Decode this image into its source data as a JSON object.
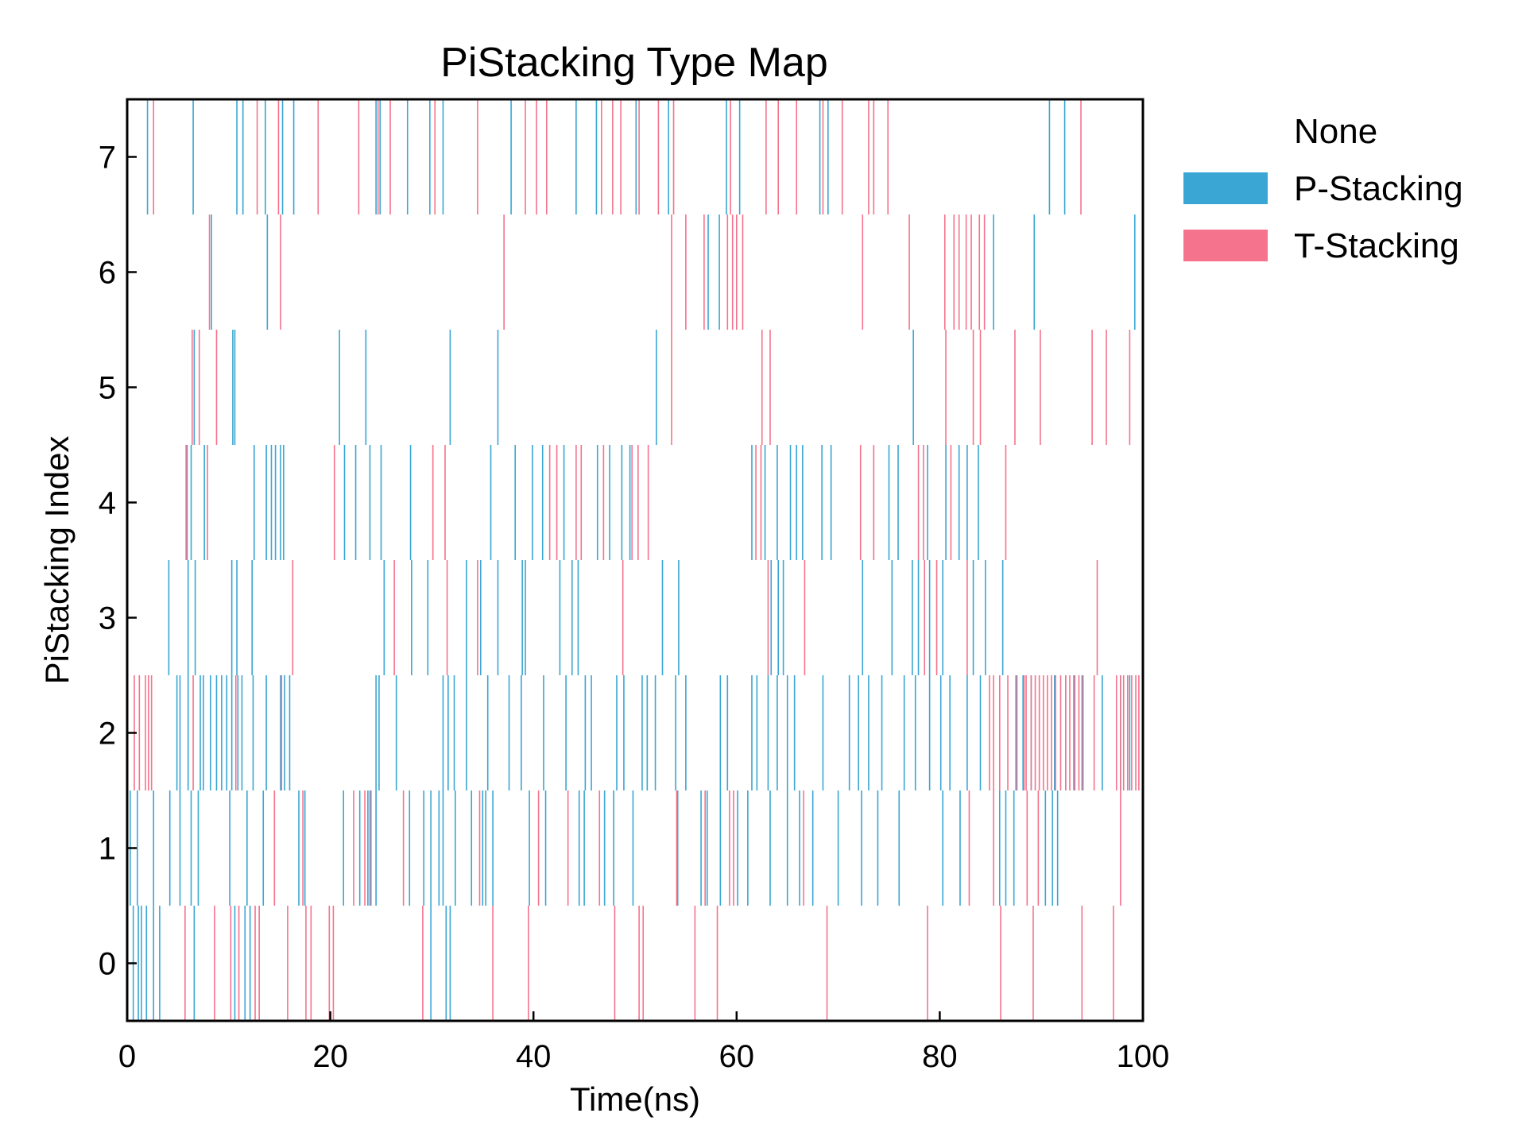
{
  "chart_data": {
    "type": "heatmap",
    "title": "PiStacking Type Map",
    "xlabel": "Time(ns)",
    "ylabel": "PiStacking Index",
    "xlim": [
      0,
      100
    ],
    "ylim": [
      -0.5,
      7.5
    ],
    "xticks": [
      0,
      20,
      40,
      60,
      80,
      100
    ],
    "yticks": [
      0,
      1,
      2,
      3,
      4,
      5,
      6,
      7
    ],
    "legend": {
      "position": "upper-right-outside",
      "entries": [
        {
          "label": "None",
          "color": "#ffffff"
        },
        {
          "label": "P-Stacking",
          "color": "#3aa6d3"
        },
        {
          "label": "T-Stacking",
          "color": "#f5738c"
        }
      ]
    },
    "colors": {
      "None": "#ffffff",
      "P-Stacking": "#3aa6d3",
      "T-Stacking": "#f5738c"
    },
    "rows": [
      {
        "index": 0,
        "P": [
          0.6,
          1.1,
          1.4,
          1.9,
          2.6,
          3.2,
          6.6,
          10.6,
          11.6,
          12.1,
          29.9,
          31.4,
          31.8
        ],
        "T": [
          5.7,
          8.6,
          10.2,
          11.0,
          12.6,
          13.0,
          15.8,
          17.6,
          18.1,
          19.9,
          20.3,
          29.1,
          36.0,
          39.5,
          48.0,
          50.4,
          50.8,
          55.9,
          58.1,
          68.9,
          78.8,
          86.0,
          89.2,
          94.0,
          97.1
        ]
      },
      {
        "index": 1,
        "P": [
          0.3,
          1.0,
          2.6,
          4.2,
          5.2,
          6.3,
          7.0,
          10.1,
          11.8,
          13.4,
          16.9,
          17.5,
          21.3,
          22.9,
          23.7,
          24.0,
          24.5,
          27.8,
          29.2,
          29.9,
          30.7,
          31.1,
          32.3,
          33.9,
          35.0,
          35.3,
          36.0,
          39.6,
          41.2,
          44.5,
          45.0,
          47.0,
          47.9,
          49.8,
          54.2,
          56.5,
          57.1,
          58.4,
          60.1,
          61.1,
          63.3,
          65.0,
          66.2,
          67.5,
          70.0,
          72.3,
          73.9,
          76.0,
          80.3,
          82.0,
          85.9,
          86.5,
          87.3,
          90.4,
          91.1,
          91.6
        ],
        "T": [
          14.5,
          17.3,
          22.3,
          23.4,
          23.9,
          27.2,
          34.7,
          40.5,
          43.4,
          46.5,
          54.1,
          56.9,
          59.3,
          59.7,
          66.6,
          82.9,
          85.3,
          88.6,
          89.7,
          97.8
        ]
      },
      {
        "index": 2,
        "P": [
          4.9,
          5.2,
          6.0,
          7.2,
          7.5,
          8.2,
          8.8,
          9.3,
          9.8,
          10.3,
          10.9,
          11.3,
          12.4,
          13.7,
          15.1,
          15.5,
          16.0,
          24.5,
          24.8,
          26.5,
          31.1,
          31.6,
          32.2,
          33.4,
          35.5,
          37.6,
          38.8,
          41.0,
          43.2,
          45.1,
          45.7,
          48.2,
          48.9,
          50.7,
          51.2,
          52.0,
          54.0,
          55.0,
          58.4,
          59.1,
          61.5,
          62.0,
          63.1,
          64.0,
          65.0,
          65.7,
          68.5,
          71.1,
          72.0,
          73.0,
          74.3,
          76.5,
          77.6,
          79.0,
          80.1,
          81.0,
          82.7,
          84.0,
          87.5,
          88.2,
          89.0,
          91.3,
          92.4,
          93.2,
          94.1,
          96.0,
          97.8,
          98.7
        ],
        "T": [
          0.7,
          1.2,
          1.8,
          2.1,
          2.4,
          6.5,
          10.7,
          15.2,
          84.9,
          85.3,
          85.9,
          86.7,
          87.6,
          88.3,
          88.5,
          89.0,
          89.4,
          89.8,
          90.2,
          90.6,
          91.0,
          91.4,
          91.9,
          92.4,
          92.8,
          93.3,
          93.7,
          94.0,
          95.2,
          97.4,
          97.8,
          98.1,
          98.5,
          98.9,
          99.3,
          99.6
        ]
      },
      {
        "index": 3,
        "P": [
          4.1,
          6.0,
          6.7,
          10.3,
          10.8,
          12.3,
          25.3,
          28.0,
          29.6,
          33.4,
          34.8,
          36.5,
          38.9,
          39.2,
          42.6,
          43.8,
          44.4,
          52.7,
          54.3,
          63.4,
          64.1,
          64.6,
          72.4,
          75.3,
          77.3,
          77.9,
          79.0,
          80.3,
          83.3,
          84.5,
          86.2
        ],
        "T": [
          16.3,
          26.3,
          31.5,
          34.5,
          48.8,
          63.1,
          66.7,
          78.5,
          79.7,
          82.7,
          95.5
        ]
      },
      {
        "index": 4,
        "P": [
          5.9,
          6.3,
          7.6,
          12.5,
          13.7,
          14.2,
          14.6,
          15.1,
          15.4,
          21.4,
          22.5,
          23.9,
          25.0,
          27.9,
          35.8,
          38.2,
          39.9,
          40.9,
          43.0,
          46.3,
          47.5,
          48.7,
          49.5,
          61.5,
          62.8,
          64.0,
          65.3,
          65.9,
          66.5,
          68.4,
          69.3,
          75.0,
          75.9,
          78.8,
          80.6,
          81.9,
          82.7,
          83.8
        ],
        "T": [
          5.8,
          7.9,
          20.4,
          30.1,
          31.3,
          41.6,
          42.3,
          44.2,
          44.7,
          46.9,
          49.7,
          50.3,
          51.3,
          61.9,
          62.4,
          72.2,
          73.5,
          77.9,
          78.4,
          81.1,
          86.5
        ]
      },
      {
        "index": 5,
        "P": [
          6.6,
          10.4,
          10.6,
          20.9,
          23.5,
          31.8,
          36.5,
          52.1,
          77.4
        ],
        "T": [
          6.4,
          7.1,
          8.8,
          53.6,
          62.5,
          63.3,
          80.6,
          83.3,
          84.0,
          87.4,
          89.9,
          95.0,
          96.4,
          98.7
        ]
      },
      {
        "index": 6,
        "P": [
          8.3,
          13.8,
          57.2,
          58.3,
          85.3,
          89.3,
          99.2
        ],
        "T": [
          8.1,
          15.1,
          37.1,
          53.6,
          55.0,
          56.8,
          59.1,
          59.6,
          60.0,
          60.6,
          72.4,
          77.0,
          80.5,
          81.4,
          81.9,
          82.6,
          83.1,
          83.9,
          84.4
        ]
      },
      {
        "index": 7,
        "P": [
          2.0,
          6.5,
          10.8,
          11.4,
          13.6,
          15.3,
          16.4,
          24.5,
          24.9,
          27.6,
          29.8,
          31.1,
          37.8,
          44.2,
          46.2,
          50.1,
          53.3,
          59.0,
          60.3,
          68.2,
          69.0,
          90.8,
          92.3
        ],
        "T": [
          2.6,
          12.8,
          14.9,
          18.8,
          22.8,
          24.7,
          25.9,
          30.3,
          34.5,
          39.2,
          40.3,
          41.3,
          46.7,
          47.8,
          48.6,
          50.4,
          52.3,
          53.8,
          59.4,
          62.9,
          64.1,
          65.9,
          68.5,
          70.4,
          73.0,
          73.5,
          74.9,
          93.9
        ]
      }
    ]
  }
}
